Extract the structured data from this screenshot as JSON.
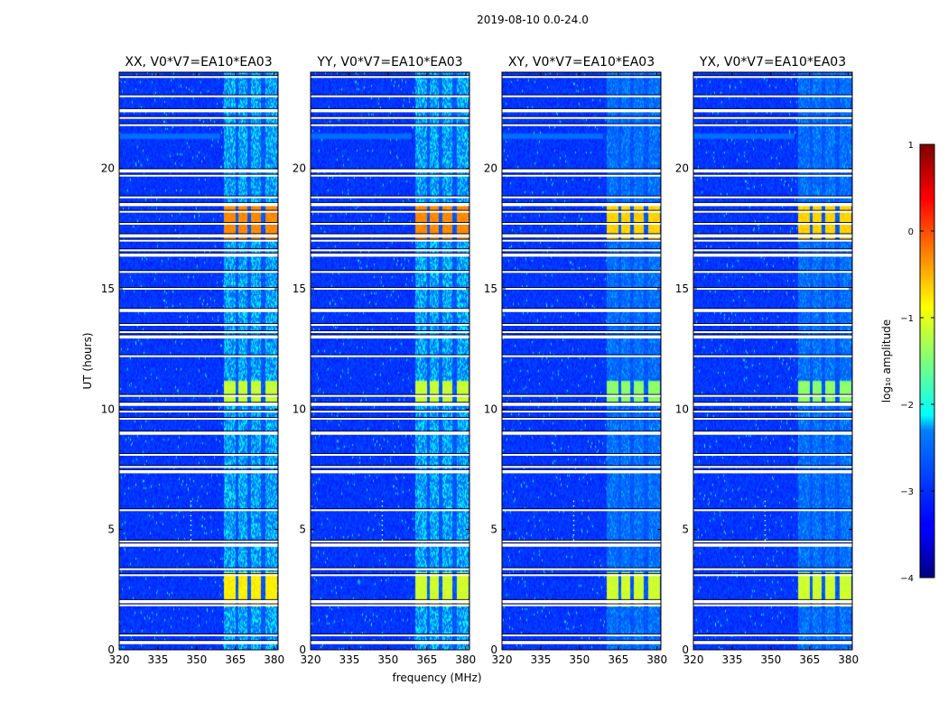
{
  "chart_data": {
    "type": "heatmap",
    "title": "2019-08-10 0.0-24.0",
    "xlabel": "frequency (MHz)",
    "ylabel": "UT (hours)",
    "xlim": [
      320,
      381.5
    ],
    "ylim": [
      0,
      24
    ],
    "xticks": [
      320,
      335,
      350,
      365,
      380
    ],
    "yticks": [
      0,
      5,
      10,
      15,
      20
    ],
    "panels": [
      {
        "title": "XX, V0*V7=EA10*EA03",
        "rfi_level": 1.0,
        "strong_3h": 0
      },
      {
        "title": "YY, V0*V7=EA10*EA03",
        "rfi_level": 1.0,
        "strong_3h": 1
      },
      {
        "title": "XY, V0*V7=EA10*EA03",
        "rfi_level": 0.9,
        "strong_3h": 0
      },
      {
        "title": "YX, V0*V7=EA10*EA03",
        "rfi_level": 0.9,
        "strong_3h": 0
      }
    ],
    "rfi_band_MHz": [
      360.5,
      381
    ],
    "rfi_subbands_MHz": [
      [
        360.5,
        365
      ],
      [
        366,
        369.5
      ],
      [
        371,
        375
      ],
      [
        376.5,
        381
      ]
    ],
    "bright_epochs_hours": [
      [
        1.8,
        3.2,
        0.62
      ],
      [
        10.3,
        11.2,
        0.55
      ],
      [
        17.0,
        18.5,
        0.72
      ]
    ],
    "flagged_rows_hours": [
      0.3,
      0.6,
      1.85,
      2.0,
      3.1,
      3.35,
      4.35,
      4.5,
      5.8,
      7.4,
      7.6,
      8.1,
      9.0,
      9.6,
      9.9,
      10.2,
      10.55,
      12.2,
      13.0,
      13.2,
      13.5,
      14.1,
      15.0,
      15.7,
      16.4,
      16.6,
      17.0,
      17.2,
      17.7,
      18.2,
      18.5,
      18.8,
      19.7,
      19.9,
      21.8,
      22.1,
      22.4,
      23.0,
      23.8
    ],
    "colorbar": {
      "label": "log₁₀ amplitude",
      "range": [
        -4,
        1
      ],
      "ticks": [
        1,
        0,
        -1,
        -2,
        -3,
        -4
      ],
      "tick_labels": [
        "1",
        "0",
        "−1",
        "−2",
        "−3",
        "−4"
      ]
    },
    "colormap": "jet"
  }
}
